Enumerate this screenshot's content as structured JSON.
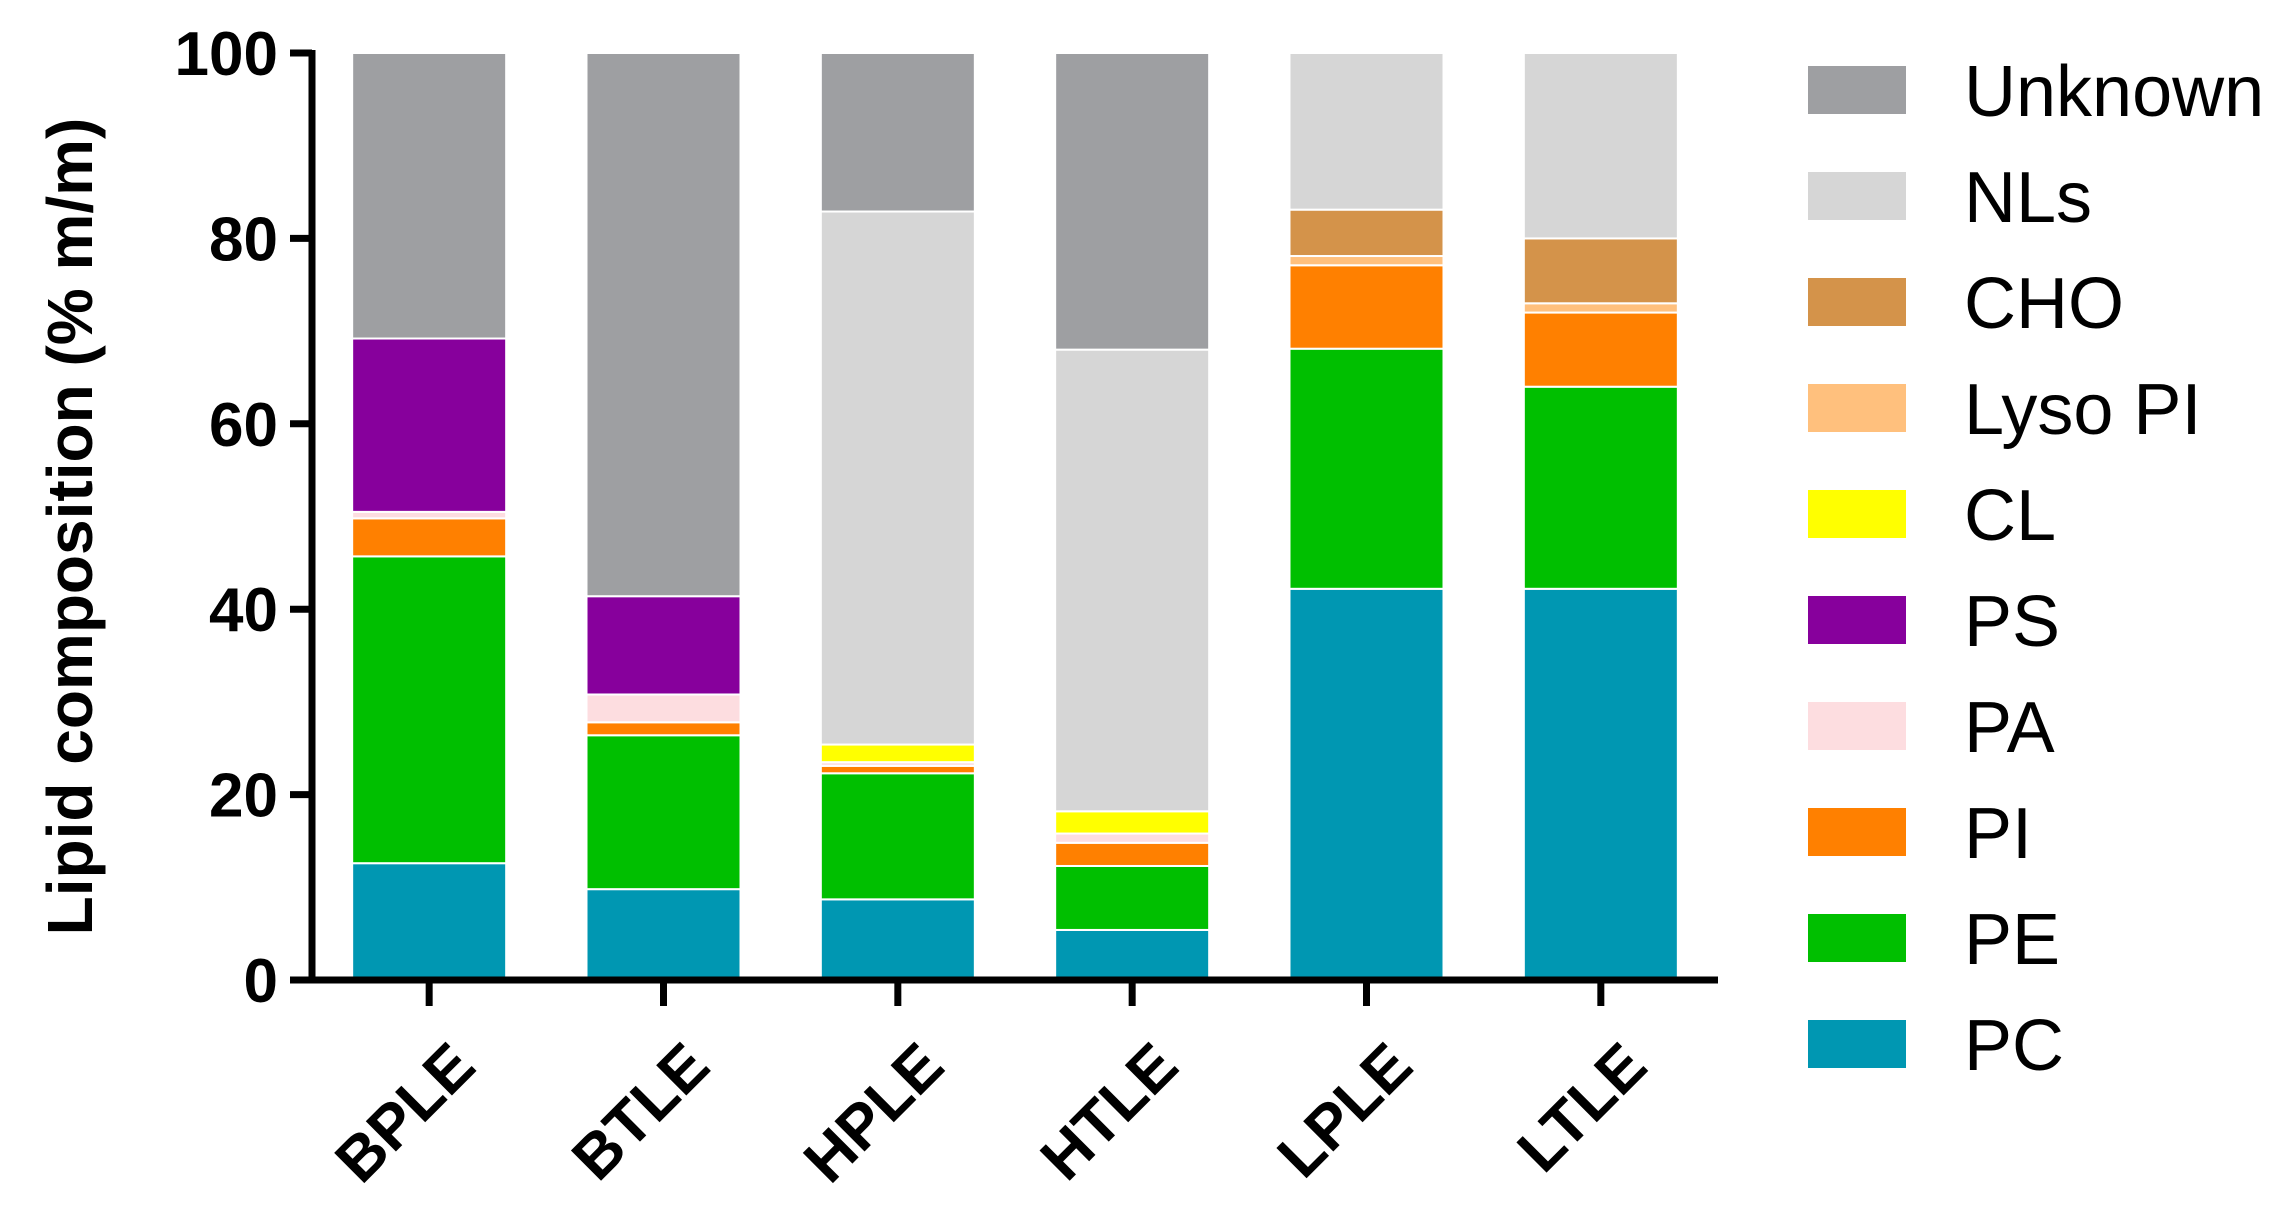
{
  "chart_data": {
    "type": "bar",
    "stacked": true,
    "title": "",
    "xlabel": "",
    "ylabel": "Lipid composition (% m/m)",
    "ylim": [
      0,
      100
    ],
    "yticks": [
      0,
      20,
      40,
      60,
      80,
      100
    ],
    "grid": false,
    "legend_position": "right",
    "categories": [
      "BPLE",
      "BTLE",
      "HPLE",
      "HTLE",
      "LPLE",
      "LTLE"
    ],
    "series": [
      {
        "name": "PC",
        "color": "#0097B2",
        "values": [
          12.6,
          9.8,
          8.7,
          5.4,
          42.2,
          42.2
        ]
      },
      {
        "name": "PE",
        "color": "#00BF00",
        "values": [
          33.1,
          16.6,
          13.6,
          6.9,
          25.9,
          21.8
        ]
      },
      {
        "name": "PI",
        "color": "#FF8000",
        "values": [
          4.1,
          1.4,
          0.8,
          2.5,
          9.0,
          8.0
        ]
      },
      {
        "name": "PA",
        "color": "#FDDDE0",
        "values": [
          0.7,
          3.0,
          0.4,
          1.0,
          0.0,
          0.0
        ]
      },
      {
        "name": "PS",
        "color": "#87009C",
        "values": [
          18.7,
          10.6,
          0.0,
          0.0,
          0.0,
          0.0
        ]
      },
      {
        "name": "CL",
        "color": "#FFFF00",
        "values": [
          0.0,
          0.0,
          1.9,
          2.4,
          0.0,
          0.0
        ]
      },
      {
        "name": "Lyso PI",
        "color": "#FFC07D",
        "values": [
          0.0,
          0.0,
          0.0,
          0.0,
          1.0,
          1.0
        ]
      },
      {
        "name": "CHO",
        "color": "#D4934A",
        "values": [
          0.0,
          0.0,
          0.0,
          0.0,
          5.0,
          7.0
        ]
      },
      {
        "name": "NLs",
        "color": "#D6D6D6",
        "values": [
          0.0,
          0.0,
          57.5,
          49.8,
          16.9,
          20.0
        ]
      },
      {
        "name": "Unknown",
        "color": "#9E9FA2",
        "values": [
          30.8,
          58.6,
          17.1,
          32.0,
          0.0,
          0.0
        ]
      }
    ]
  }
}
